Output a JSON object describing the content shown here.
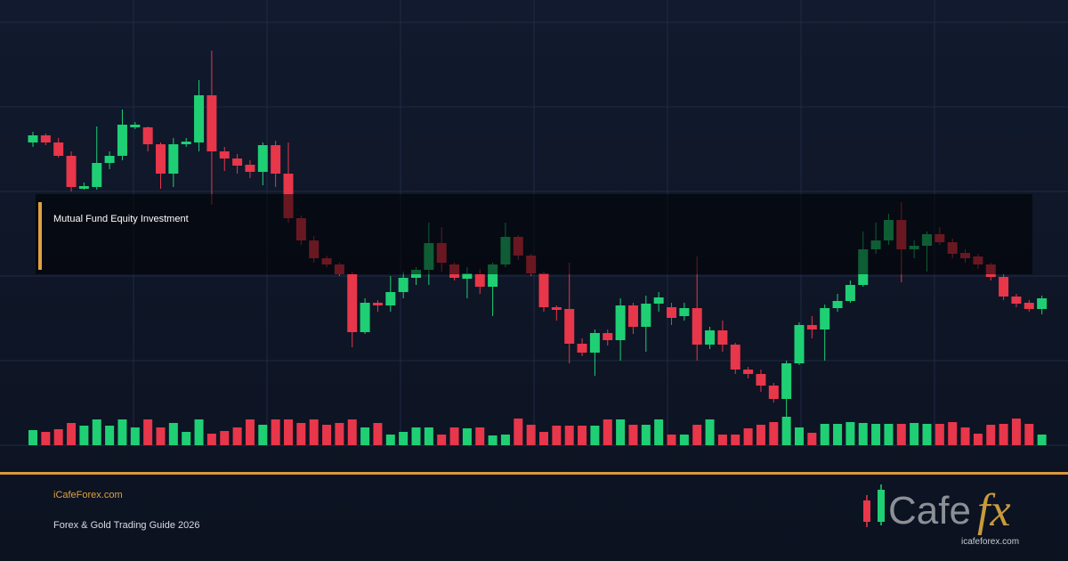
{
  "chart_data": {
    "type": "candlestick",
    "grid": true,
    "up_color": "#1fcf74",
    "down_color": "#e8364a",
    "ylim": [
      0,
      475
    ],
    "volume_lim": [
      0,
      40
    ],
    "open": [
      340,
      348,
      340,
      325,
      288,
      290,
      317,
      325,
      357,
      357,
      338,
      305,
      338,
      340,
      393,
      330,
      322,
      315,
      307,
      337,
      305,
      255,
      230,
      210,
      203,
      192,
      127,
      160,
      157,
      172,
      188,
      197,
      227,
      203,
      187,
      192,
      178,
      203,
      234,
      213,
      193,
      155,
      153,
      114,
      104,
      126,
      118,
      157,
      133,
      159,
      155,
      145,
      154,
      113,
      129,
      113,
      85,
      80,
      67,
      52,
      92,
      135,
      130,
      154,
      162,
      180,
      220,
      230,
      253,
      220,
      224,
      237,
      228,
      216,
      212,
      203,
      189,
      167,
      160,
      153
    ],
    "high": [
      352,
      350,
      345,
      330,
      295,
      358,
      330,
      377,
      363,
      358,
      340,
      345,
      345,
      410,
      443,
      335,
      327,
      320,
      340,
      342,
      340,
      258,
      235,
      213,
      205,
      195,
      165,
      163,
      190,
      195,
      200,
      250,
      245,
      205,
      200,
      198,
      205,
      250,
      236,
      215,
      195,
      157,
      205,
      120,
      130,
      130,
      165,
      160,
      168,
      172,
      160,
      160,
      212,
      133,
      140,
      115,
      88,
      85,
      70,
      95,
      138,
      145,
      158,
      170,
      185,
      240,
      250,
      260,
      273,
      230,
      240,
      245,
      232,
      220,
      215,
      205,
      192,
      170,
      163,
      168
    ],
    "low": [
      335,
      337,
      323,
      285,
      287,
      287,
      310,
      320,
      355,
      330,
      288,
      290,
      335,
      330,
      270,
      308,
      305,
      300,
      292,
      290,
      250,
      225,
      205,
      200,
      190,
      110,
      125,
      150,
      150,
      165,
      180,
      180,
      195,
      185,
      165,
      170,
      145,
      200,
      208,
      190,
      150,
      140,
      92,
      100,
      78,
      112,
      95,
      125,
      105,
      150,
      135,
      140,
      95,
      108,
      105,
      80,
      75,
      60,
      48,
      32,
      90,
      120,
      95,
      150,
      160,
      178,
      215,
      225,
      183,
      210,
      195,
      225,
      210,
      205,
      198,
      185,
      163,
      155,
      150,
      147
    ],
    "close": [
      348,
      340,
      325,
      290,
      291,
      317,
      325,
      360,
      360,
      338,
      305,
      338,
      341,
      393,
      330,
      322,
      314,
      307,
      337,
      305,
      255,
      230,
      210,
      203,
      192,
      127,
      160,
      157,
      172,
      188,
      197,
      227,
      205,
      188,
      193,
      178,
      203,
      234,
      213,
      193,
      155,
      152,
      114,
      104,
      126,
      118,
      157,
      133,
      159,
      166,
      143,
      154,
      113,
      129,
      113,
      85,
      80,
      67,
      52,
      92,
      135,
      130,
      154,
      162,
      180,
      220,
      230,
      253,
      220,
      224,
      237,
      228,
      215,
      210,
      203,
      189,
      167,
      159,
      153,
      165
    ],
    "volume": [
      17,
      15,
      18,
      25,
      22,
      29,
      22,
      29,
      20,
      29,
      20,
      25,
      15,
      29,
      13,
      16,
      20,
      29,
      23,
      29,
      29,
      25,
      29,
      23,
      25,
      29,
      20,
      25,
      12,
      15,
      20,
      20,
      12,
      20,
      19,
      20,
      11,
      12,
      30,
      23,
      15,
      22,
      22,
      22,
      22,
      29,
      29,
      23,
      23,
      29,
      12,
      12,
      23,
      29,
      12,
      12,
      19,
      23,
      26,
      32,
      20,
      14,
      24,
      24,
      26,
      25,
      24,
      24,
      24,
      25,
      24,
      24,
      26,
      20,
      13,
      23,
      24,
      30,
      24,
      12
    ],
    "annotation": "Mutual Fund Equity Investment"
  },
  "footer": {
    "site": "iCafeForex.com",
    "subtitle": "Forex & Gold Trading Guide 2026"
  },
  "logo": {
    "text": "Cafe",
    "accent": "fx",
    "url": "icafeforex.com"
  }
}
